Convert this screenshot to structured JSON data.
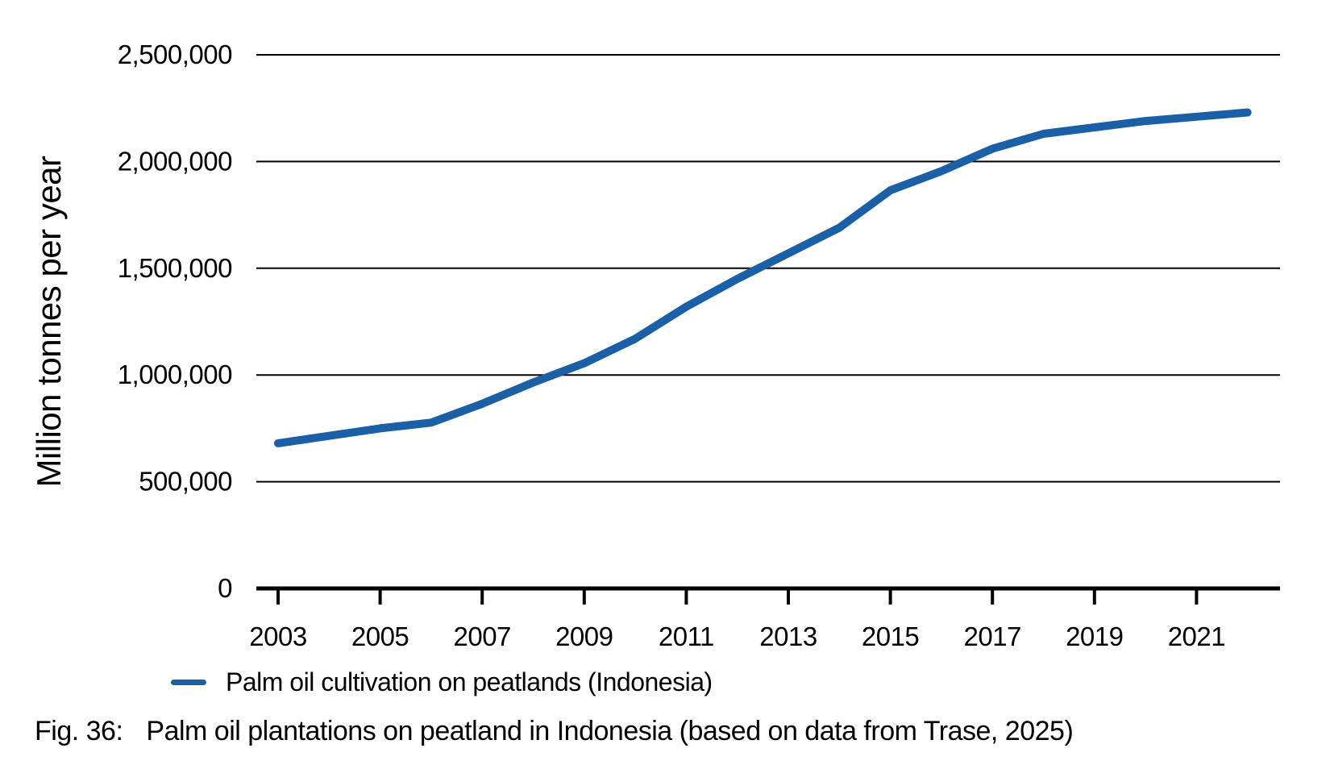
{
  "figure": {
    "fig_label": "Fig. 36:",
    "caption": "Palm oil plantations on peatland in Indonesia (based on data from Trase, 2025)"
  },
  "legend": {
    "label": "Palm oil cultivation on peatlands (Indonesia)"
  },
  "colors": {
    "series": "#1b5fa6",
    "grid": "#000000",
    "axis": "#000000",
    "text": "#000000"
  },
  "chart_data": {
    "type": "line",
    "title": "",
    "xlabel": "",
    "ylabel": "Million tonnes per year",
    "grid": "horizontal",
    "legend_position": "bottom-left",
    "ylim": [
      0,
      2500000
    ],
    "xlim": [
      2003,
      2022
    ],
    "y_ticks": [
      0,
      500000,
      1000000,
      1500000,
      2000000,
      2500000
    ],
    "x_ticks": [
      2003,
      2005,
      2007,
      2009,
      2011,
      2013,
      2015,
      2017,
      2019,
      2021
    ],
    "x": [
      2003,
      2004,
      2005,
      2006,
      2007,
      2008,
      2009,
      2010,
      2011,
      2012,
      2013,
      2014,
      2015,
      2016,
      2017,
      2018,
      2019,
      2020,
      2021,
      2022
    ],
    "series": [
      {
        "name": "Palm oil cultivation on peatlands (Indonesia)",
        "color": "#1b5fa6",
        "values": [
          680000,
          715000,
          750000,
          777000,
          865000,
          965000,
          1055000,
          1170000,
          1320000,
          1450000,
          1570000,
          1690000,
          1865000,
          1955000,
          2060000,
          2130000,
          2160000,
          2190000,
          2210000,
          2230000
        ]
      }
    ]
  }
}
